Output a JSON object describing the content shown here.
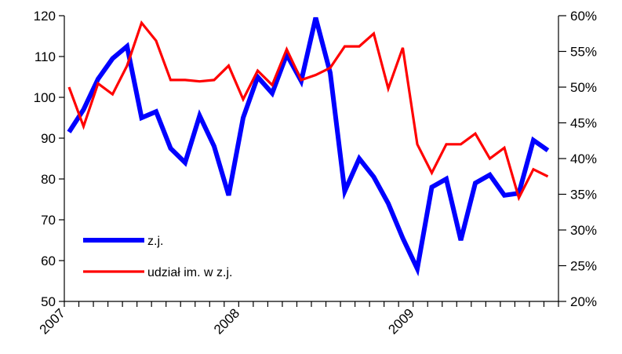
{
  "chart_data": {
    "type": "line",
    "x_tick_labels": [
      "2007",
      "2008",
      "2009"
    ],
    "x_tick_positions": [
      0,
      12,
      24
    ],
    "months": 37,
    "y_left": {
      "ticks": [
        50,
        60,
        70,
        80,
        90,
        100,
        110,
        120
      ],
      "range": [
        50,
        120
      ]
    },
    "y_right": {
      "ticks": [
        "20%",
        "25%",
        "30%",
        "35%",
        "40%",
        "45%",
        "50%",
        "55%",
        "60%"
      ],
      "range": [
        20,
        60
      ]
    },
    "series": [
      {
        "name": "z.j.",
        "axis": "left",
        "color": "#0000ff",
        "values": [
          91.5,
          97,
          104.5,
          109.5,
          112.5,
          95,
          96.5,
          87.5,
          84,
          95.5,
          88,
          76,
          95,
          105,
          101,
          110.5,
          104,
          119.5,
          106,
          77,
          85,
          80.5,
          74,
          65.5,
          58,
          78,
          80,
          65,
          79,
          81,
          76,
          76.5,
          89.5,
          87
        ]
      },
      {
        "name": "udział im. w z.j.",
        "axis": "right",
        "color": "#ff0000",
        "values": [
          50,
          44.5,
          50.5,
          49,
          53,
          59,
          56.5,
          51,
          51,
          50.8,
          51,
          53,
          48.3,
          52.3,
          50.3,
          55.3,
          51,
          51.7,
          52.7,
          55.7,
          55.7,
          57.5,
          49.8,
          55.5,
          42,
          38,
          42,
          42,
          43.5,
          40,
          41.5,
          34.5,
          38.5,
          37.5
        ]
      }
    ],
    "legend_position": "bottom-left",
    "grid": false
  }
}
